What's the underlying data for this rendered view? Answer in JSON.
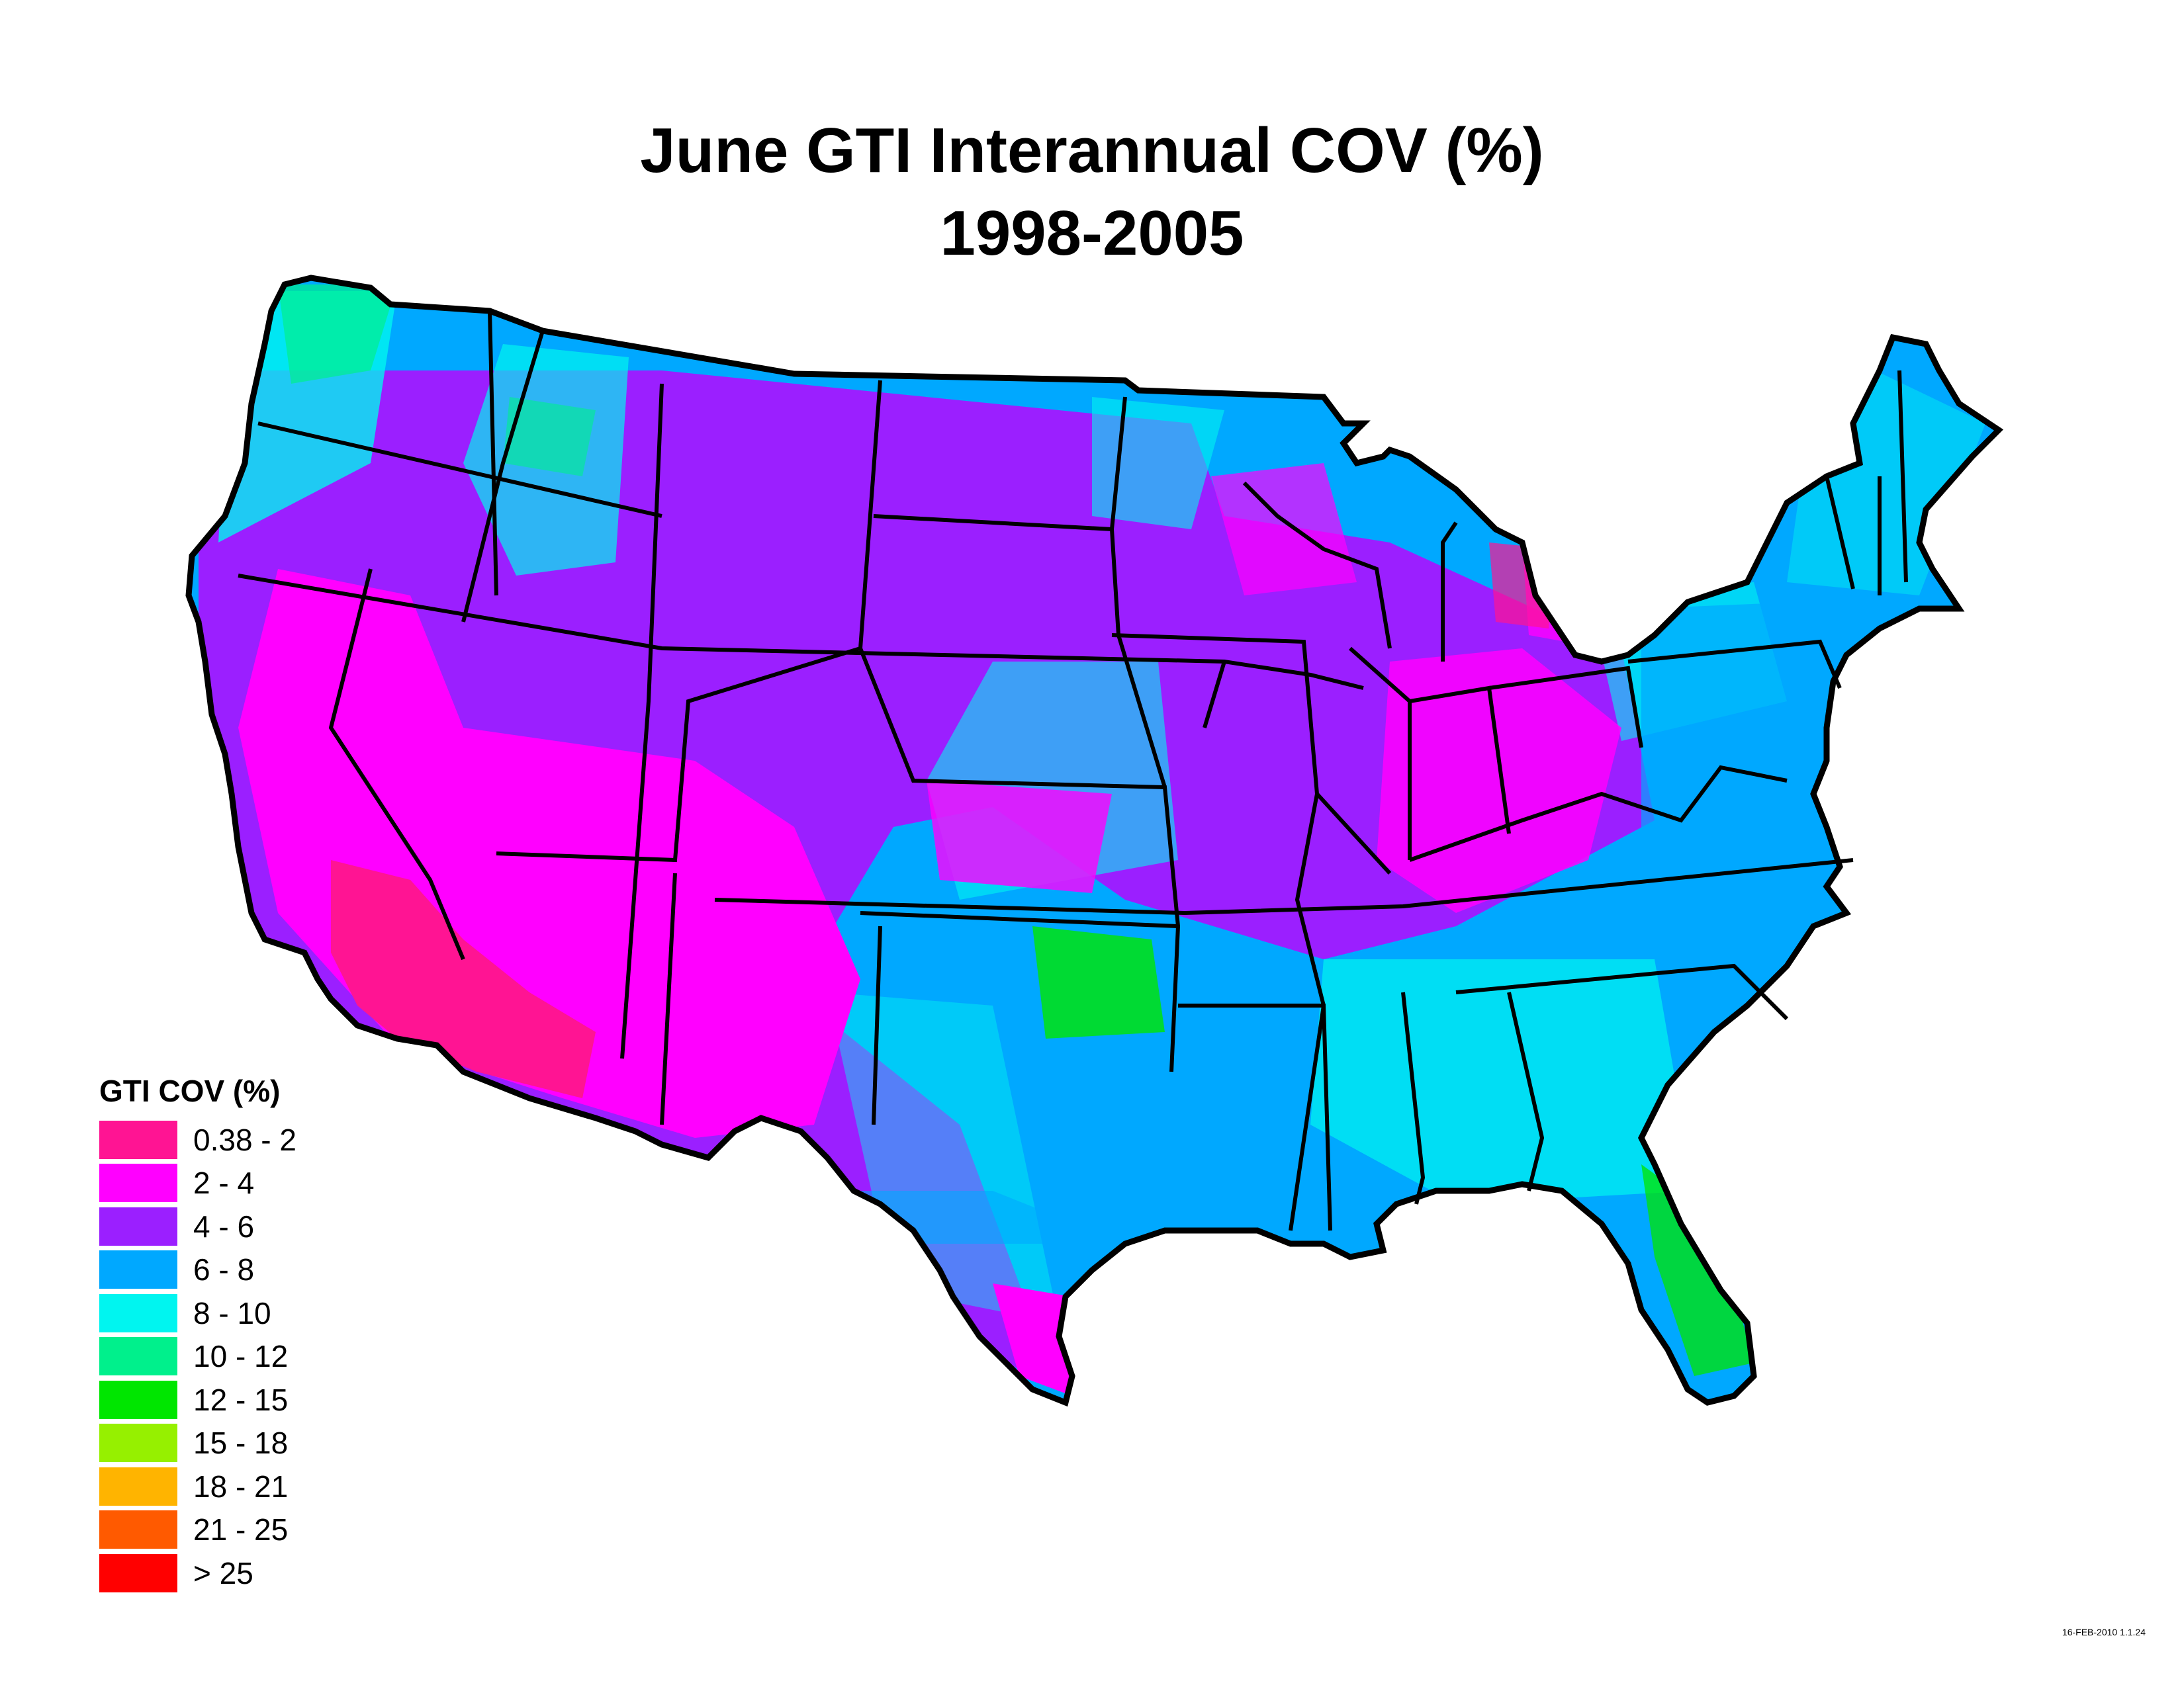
{
  "title": {
    "line1": "June GTI Interannual COV (%)",
    "line2": "1998-2005"
  },
  "legend": {
    "title": "GTI COV (%)",
    "items": [
      {
        "label": "0.38 - 2",
        "color": "#ff1493"
      },
      {
        "label": "2 - 4",
        "color": "#ff00ff"
      },
      {
        "label": "4 - 6",
        "color": "#9b1fff"
      },
      {
        "label": "6 - 8",
        "color": "#00a8ff"
      },
      {
        "label": "8 - 10",
        "color": "#00f5f0"
      },
      {
        "label": "10 - 12",
        "color": "#00f08c"
      },
      {
        "label": "12 - 15",
        "color": "#00e600"
      },
      {
        "label": "15 - 18",
        "color": "#96f000"
      },
      {
        "label": "18 - 21",
        "color": "#ffb400"
      },
      {
        "label": "21 - 25",
        "color": "#ff5a00"
      },
      {
        "label": "> 25",
        "color": "#ff0000"
      }
    ]
  },
  "timestamp": "16-FEB-2010 1.1.24",
  "map": {
    "region": "Contiguous United States",
    "boundaries": "state borders"
  }
}
